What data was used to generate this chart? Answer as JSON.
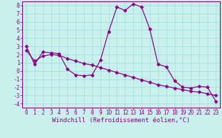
{
  "xlabel": "Windchill (Refroidissement éolien,°C)",
  "background_color": "#caf0ee",
  "line_color": "#880088",
  "grid_color": "#99dddd",
  "xlim": [
    -0.5,
    23.5
  ],
  "ylim": [
    -4.5,
    8.5
  ],
  "yticks": [
    -4,
    -3,
    -2,
    -1,
    0,
    1,
    2,
    3,
    4,
    5,
    6,
    7,
    8
  ],
  "xticks": [
    0,
    1,
    2,
    3,
    4,
    5,
    6,
    7,
    8,
    9,
    10,
    11,
    12,
    13,
    14,
    15,
    16,
    17,
    18,
    19,
    20,
    21,
    22,
    23
  ],
  "line1_x": [
    0,
    1,
    2,
    3,
    4,
    5,
    6,
    7,
    8,
    9,
    10,
    11,
    12,
    13,
    14,
    15,
    16,
    17,
    18,
    19,
    20,
    21,
    22,
    23
  ],
  "line1_y": [
    3.0,
    0.8,
    2.3,
    2.2,
    2.1,
    0.2,
    -0.5,
    -0.6,
    -0.5,
    1.3,
    4.8,
    7.8,
    7.4,
    8.2,
    7.8,
    5.1,
    0.8,
    0.5,
    -1.2,
    -2.0,
    -2.1,
    -1.9,
    -2.0,
    -3.7
  ],
  "line2_x": [
    0,
    1,
    2,
    3,
    4,
    5,
    6,
    7,
    8,
    9,
    10,
    11,
    12,
    13,
    14,
    15,
    16,
    17,
    18,
    19,
    20,
    21,
    22,
    23
  ],
  "line2_y": [
    2.5,
    1.2,
    1.8,
    2.0,
    1.9,
    1.5,
    1.2,
    0.9,
    0.7,
    0.4,
    0.1,
    -0.2,
    -0.5,
    -0.8,
    -1.1,
    -1.4,
    -1.7,
    -1.9,
    -2.1,
    -2.3,
    -2.5,
    -2.6,
    -2.8,
    -3.0
  ],
  "marker_style": "D",
  "marker_size": 2.5,
  "line_width": 0.9,
  "tick_fontsize": 5.5,
  "label_fontsize": 6.5
}
